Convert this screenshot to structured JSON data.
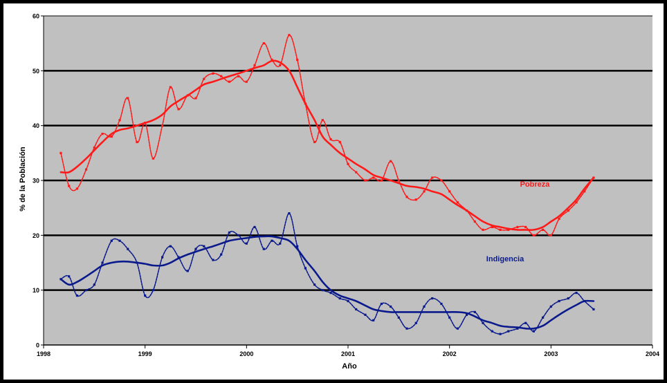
{
  "chart_data": {
    "type": "line",
    "xlabel": "Año",
    "ylabel": "% de la Población",
    "xlim": [
      1998,
      2004
    ],
    "ylim": [
      0,
      60
    ],
    "x_ticks": [
      "1998",
      "1999",
      "2000",
      "2001",
      "2002",
      "2003",
      "2004"
    ],
    "y_ticks": [
      "0",
      "10",
      "20",
      "30",
      "40",
      "50",
      "60"
    ],
    "grid": true,
    "colors": {
      "pobreza": "#ff1a1a",
      "indigencia": "#0a1a8c",
      "plot_bg": "#c0c0c0"
    },
    "annotations": [
      {
        "text": "Pobreza",
        "series": "pobreza"
      },
      {
        "text": "Indigencia",
        "series": "indigencia"
      }
    ],
    "series": [
      {
        "key": "pobreza_raw",
        "group": "pobreza",
        "style": "dotted",
        "x": [
          1998.17,
          1998.25,
          1998.33,
          1998.42,
          1998.5,
          1998.58,
          1998.67,
          1998.75,
          1998.83,
          1998.92,
          1999.0,
          1999.08,
          1999.17,
          1999.25,
          1999.33,
          1999.42,
          1999.5,
          1999.58,
          1999.67,
          1999.75,
          1999.83,
          1999.92,
          2000.0,
          2000.08,
          2000.17,
          2000.25,
          2000.33,
          2000.42,
          2000.5,
          2000.58,
          2000.67,
          2000.75,
          2000.83,
          2000.92,
          2001.0,
          2001.08,
          2001.17,
          2001.25,
          2001.33,
          2001.42,
          2001.5,
          2001.58,
          2001.67,
          2001.75,
          2001.83,
          2001.92,
          2002.0,
          2002.08,
          2002.17,
          2002.25,
          2002.33,
          2002.42,
          2002.5,
          2002.58,
          2002.67,
          2002.75,
          2002.83,
          2002.92,
          2003.0,
          2003.08,
          2003.17,
          2003.25,
          2003.33,
          2003.42
        ],
        "y": [
          35,
          29,
          28.5,
          32,
          36,
          38.5,
          38,
          41,
          45,
          37,
          40.5,
          34,
          40,
          47,
          43,
          45.5,
          45,
          48.5,
          49.5,
          49,
          48,
          49,
          48,
          51,
          55,
          52,
          51,
          56.5,
          52,
          44,
          37,
          41,
          37.5,
          37,
          33,
          31.5,
          30,
          30.5,
          30,
          33.5,
          30,
          27,
          26.5,
          28,
          30.5,
          30,
          28,
          26,
          24.5,
          22.5,
          21,
          21.5,
          21,
          21,
          21.5,
          21.5,
          20,
          21,
          20,
          23,
          24.5,
          26,
          28,
          30.5
        ]
      },
      {
        "key": "pobreza_trend",
        "group": "pobreza",
        "style": "solid",
        "x": [
          1998.17,
          1998.25,
          1998.33,
          1998.42,
          1998.5,
          1998.58,
          1998.67,
          1998.75,
          1998.83,
          1998.92,
          1999.0,
          1999.08,
          1999.17,
          1999.25,
          1999.33,
          1999.42,
          1999.5,
          1999.58,
          1999.67,
          1999.75,
          1999.83,
          1999.92,
          2000.0,
          2000.08,
          2000.17,
          2000.25,
          2000.33,
          2000.42,
          2000.5,
          2000.58,
          2000.67,
          2000.75,
          2000.83,
          2000.92,
          2001.0,
          2001.08,
          2001.17,
          2001.25,
          2001.33,
          2001.42,
          2001.5,
          2001.58,
          2001.67,
          2001.75,
          2001.83,
          2001.92,
          2002.0,
          2002.08,
          2002.17,
          2002.25,
          2002.33,
          2002.42,
          2002.5,
          2002.58,
          2002.67,
          2002.75,
          2002.83,
          2002.92,
          2003.0,
          2003.08,
          2003.17,
          2003.25,
          2003.33,
          2003.42
        ],
        "y": [
          31.5,
          31.5,
          32.5,
          34,
          35.5,
          37,
          38.5,
          39.2,
          39.5,
          40,
          40.5,
          41,
          42,
          43.5,
          44.5,
          45.5,
          46.5,
          47.5,
          48,
          48.5,
          49,
          49.5,
          50,
          50.5,
          51,
          51.8,
          51.5,
          50,
          47,
          44,
          41,
          38,
          36.5,
          35,
          34,
          33,
          32,
          31,
          30.5,
          30,
          29.5,
          29,
          28.8,
          28.5,
          28,
          27.5,
          26.5,
          25.5,
          24.5,
          23.5,
          22.5,
          21.8,
          21.5,
          21.2,
          21,
          21,
          21,
          21.5,
          22.5,
          23.5,
          25,
          26.5,
          28.5,
          30.5
        ]
      },
      {
        "key": "indigencia_raw",
        "group": "indigencia",
        "style": "dotted",
        "x": [
          1998.17,
          1998.25,
          1998.33,
          1998.42,
          1998.5,
          1998.58,
          1998.67,
          1998.75,
          1998.83,
          1998.92,
          1999.0,
          1999.08,
          1999.17,
          1999.25,
          1999.33,
          1999.42,
          1999.5,
          1999.58,
          1999.67,
          1999.75,
          1999.83,
          1999.92,
          2000.0,
          2000.08,
          2000.17,
          2000.25,
          2000.33,
          2000.42,
          2000.5,
          2000.58,
          2000.67,
          2000.75,
          2000.83,
          2000.92,
          2001.0,
          2001.08,
          2001.17,
          2001.25,
          2001.33,
          2001.42,
          2001.5,
          2001.58,
          2001.67,
          2001.75,
          2001.83,
          2001.92,
          2002.0,
          2002.08,
          2002.17,
          2002.25,
          2002.33,
          2002.42,
          2002.5,
          2002.58,
          2002.67,
          2002.75,
          2002.83,
          2002.92,
          2003.0,
          2003.08,
          2003.17,
          2003.25,
          2003.33,
          2003.42
        ],
        "y": [
          12,
          12.5,
          9,
          10,
          11,
          15,
          19,
          19,
          17.5,
          15,
          9,
          10,
          16,
          18,
          16,
          13.5,
          17.5,
          18,
          15.5,
          16.5,
          20.5,
          20,
          18.5,
          21.5,
          17.5,
          19,
          18.5,
          24,
          18,
          14,
          11,
          10,
          9.5,
          8.5,
          8,
          6.5,
          5.5,
          4.5,
          7.5,
          7,
          5,
          3,
          4,
          7,
          8.5,
          7.5,
          5,
          3,
          5.5,
          6,
          4,
          2.5,
          2,
          2.5,
          3,
          4,
          2.5,
          5,
          7,
          8,
          8.5,
          9.5,
          8,
          6.5
        ]
      },
      {
        "key": "indigencia_trend",
        "group": "indigencia",
        "style": "solid",
        "x": [
          1998.17,
          1998.25,
          1998.33,
          1998.42,
          1998.5,
          1998.58,
          1998.67,
          1998.75,
          1998.83,
          1998.92,
          1999.0,
          1999.08,
          1999.17,
          1999.25,
          1999.33,
          1999.42,
          1999.5,
          1999.58,
          1999.67,
          1999.75,
          1999.83,
          1999.92,
          2000.0,
          2000.08,
          2000.17,
          2000.25,
          2000.33,
          2000.42,
          2000.5,
          2000.58,
          2000.67,
          2000.75,
          2000.83,
          2000.92,
          2001.0,
          2001.08,
          2001.17,
          2001.25,
          2001.33,
          2001.42,
          2001.5,
          2001.58,
          2001.67,
          2001.75,
          2001.83,
          2001.92,
          2002.0,
          2002.08,
          2002.17,
          2002.25,
          2002.33,
          2002.42,
          2002.5,
          2002.58,
          2002.67,
          2002.75,
          2002.83,
          2002.92,
          2003.0,
          2003.08,
          2003.17,
          2003.25,
          2003.33,
          2003.42
        ],
        "y": [
          12,
          11,
          11.5,
          12.5,
          13.5,
          14.5,
          15,
          15.2,
          15.2,
          15,
          14.8,
          14.5,
          14.5,
          15,
          15.8,
          16.5,
          17,
          17.5,
          18,
          18.5,
          19,
          19.3,
          19.5,
          19.7,
          19.8,
          19.8,
          19.5,
          19,
          17.5,
          15.5,
          13.5,
          11.5,
          10,
          9,
          8.5,
          8,
          7.2,
          6.5,
          6.2,
          6,
          6,
          6,
          6,
          6,
          6,
          6,
          6,
          6,
          5.8,
          5.2,
          4.5,
          4,
          3.5,
          3.3,
          3.2,
          3,
          3,
          3.5,
          4.5,
          5.5,
          6.5,
          7.3,
          8,
          8
        ]
      }
    ]
  }
}
